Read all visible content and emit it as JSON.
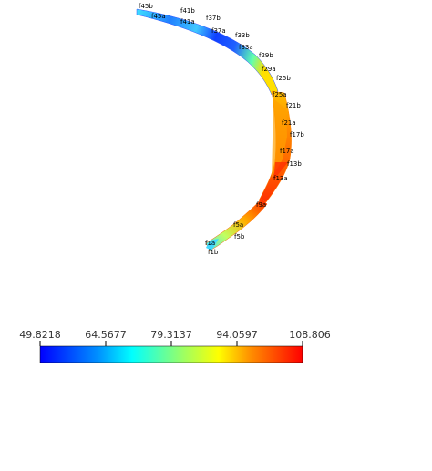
{
  "viewport": {
    "frame_labels": [
      {
        "id": "f45b",
        "text": "f45b"
      },
      {
        "id": "f45a",
        "text": "f45a"
      },
      {
        "id": "f41b",
        "text": "f41b"
      },
      {
        "id": "f41a",
        "text": "f41a"
      },
      {
        "id": "f37b",
        "text": "f37b"
      },
      {
        "id": "f37a",
        "text": "f37a"
      },
      {
        "id": "f33b",
        "text": "f33b"
      },
      {
        "id": "f33a",
        "text": "f33a"
      },
      {
        "id": "f29b",
        "text": "f29b"
      },
      {
        "id": "f29a",
        "text": "f29a"
      },
      {
        "id": "f25b",
        "text": "f25b"
      },
      {
        "id": "f25a",
        "text": "f25a"
      },
      {
        "id": "f21b",
        "text": "f21b"
      },
      {
        "id": "f21a",
        "text": "f21a"
      },
      {
        "id": "f17b",
        "text": "f17b"
      },
      {
        "id": "f17a",
        "text": "f17a"
      },
      {
        "id": "f13b",
        "text": "f13b"
      },
      {
        "id": "f13a",
        "text": "f13a"
      },
      {
        "id": "f9a",
        "text": "f9a"
      },
      {
        "id": "f5a",
        "text": "f5a"
      },
      {
        "id": "f5b",
        "text": "f5b"
      },
      {
        "id": "f1a",
        "text": "f1a"
      },
      {
        "id": "f1b",
        "text": "f1b"
      }
    ]
  },
  "colorbar": {
    "ticks": [
      "49.8218",
      "64.5677",
      "79.3137",
      "94.0597",
      "108.806"
    ],
    "colors": [
      "#0000ff",
      "#00a0ff",
      "#00ffff",
      "#80ffa0",
      "#ffff00",
      "#ff8000",
      "#ff0000"
    ]
  }
}
